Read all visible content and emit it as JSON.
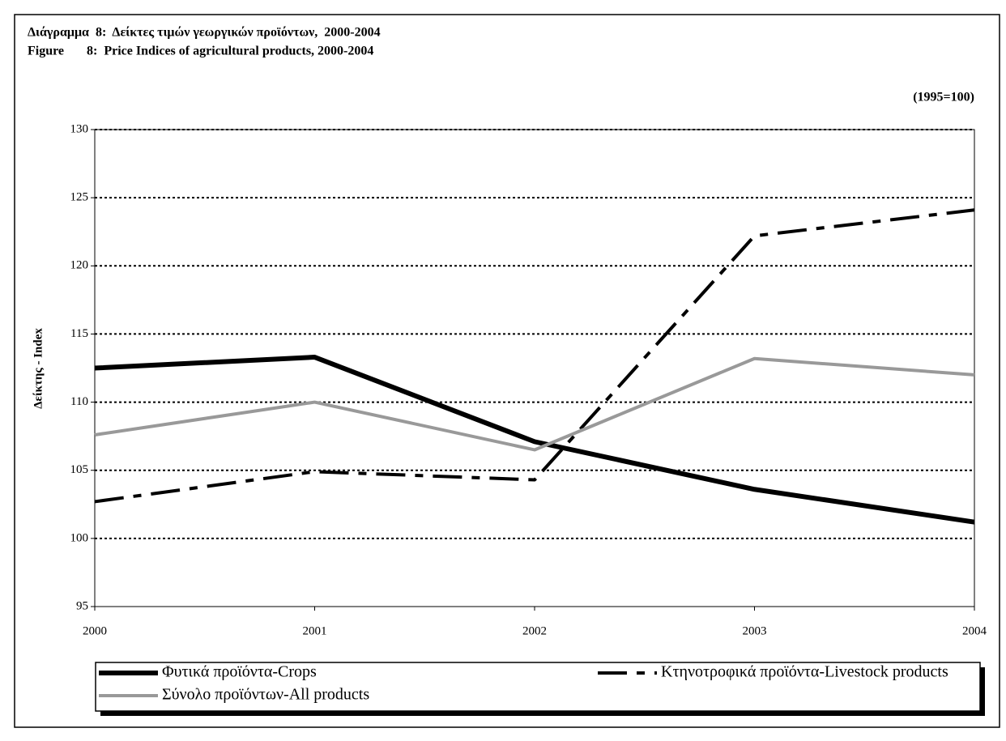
{
  "chart_data": {
    "type": "line",
    "title": "Διάγραμμα  8:  Δείκτες τιμών γεωργικών προϊόντων,  2000-2004",
    "subtitle": "Figure       8:  Price Indices of agricultural products, 2000-2004",
    "annotation": "(1995=100)",
    "y_label": "Δείκτης - Index",
    "x": [
      2000,
      2001,
      2002,
      2003,
      2004
    ],
    "xlim": [
      2000,
      2004
    ],
    "xticks": [
      2000,
      2001,
      2002,
      2003,
      2004
    ],
    "ylim": [
      95,
      130
    ],
    "yticks": [
      95,
      100,
      105,
      110,
      115,
      120,
      125,
      130
    ],
    "grid": true,
    "legend": "bottom",
    "series": [
      {
        "name": "Φυτικά προϊόντα-Crops",
        "color": "#000000",
        "line_style": "solid",
        "values": [
          112.5,
          113.3,
          107.1,
          103.6,
          101.2
        ]
      },
      {
        "name": "Κτηνοτροφικά προϊόντα-Livestock products",
        "color": "#000000",
        "line_style": "dashdot",
        "values": [
          102.7,
          104.9,
          104.3,
          122.2,
          124.1
        ]
      },
      {
        "name": "Σύνολο προϊόντων-All products",
        "color": "#999999",
        "line_style": "solid",
        "values": [
          107.6,
          110.0,
          106.5,
          113.2,
          112.0
        ]
      }
    ]
  }
}
